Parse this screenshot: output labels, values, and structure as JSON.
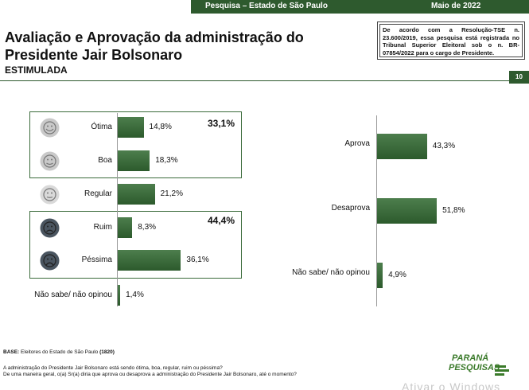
{
  "header": {
    "survey": "Pesquisa – Estado de São Paulo",
    "date": "Maio de 2022",
    "title": "Avaliação e Aprovação da administração do Presidente Jair Bolsonaro",
    "subtitle": "ESTIMULADA",
    "notice": "De acordo com a Resolução-TSE n. 23.600/2019, essa pesquisa está registrada no Tribunal Superior Eleitoral sob o n. BR-07854/2022 para o cargo de Presidente.",
    "page_number": "10"
  },
  "chart_data": [
    {
      "type": "bar",
      "orientation": "horizontal",
      "categories": [
        "Ótima",
        "Boa",
        "Regular",
        "Ruim",
        "Péssima",
        "Não sabe/ não opinou"
      ],
      "values": [
        14.8,
        18.3,
        21.2,
        8.3,
        36.1,
        1.4
      ],
      "value_labels": [
        "14,8%",
        "18,3%",
        "21,2%",
        "8,3%",
        "36,1%",
        "1,4%"
      ],
      "groups": [
        {
          "members": [
            "Ótima",
            "Boa"
          ],
          "total": 33.1,
          "total_label": "33,1%"
        },
        {
          "members": [
            "Ruim",
            "Péssima"
          ],
          "total": 44.4,
          "total_label": "44,4%"
        }
      ],
      "faces": [
        "very-happy-face-icon",
        "happy-face-icon",
        "neutral-face-icon",
        "sad-face-icon",
        "very-sad-face-icon",
        ""
      ],
      "face_colors": [
        "#c9c9c9",
        "#c9c9c9",
        "#d9d9d9",
        "#4a5560",
        "#4a5560"
      ],
      "bar_color": "#3d6b3d"
    },
    {
      "type": "bar",
      "orientation": "horizontal",
      "categories": [
        "Aprova",
        "Desaprova",
        "Não sabe/ não opinou"
      ],
      "values": [
        43.3,
        51.8,
        4.9
      ],
      "value_labels": [
        "43,3%",
        "51,8%",
        "4,9%"
      ],
      "bar_color": "#3d6b3d"
    }
  ],
  "footer": {
    "base_label": "BASE:",
    "base_text": "Eleitores do Estado de São Paulo",
    "base_n": "(1820)",
    "question1": "A administração do Presidente Jair Bolsonaro está sendo ótima, boa, regular, ruim ou péssima?",
    "question2": "De uma maneira geral, o(a) Sr(a) diria que aprova ou desaprova a administração do Presidente Jair Bolsonaro, até o momento?",
    "logo_line1": "PARANÁ",
    "logo_line2": "PESQUISAS",
    "watermark": "Ativar o Windows"
  }
}
